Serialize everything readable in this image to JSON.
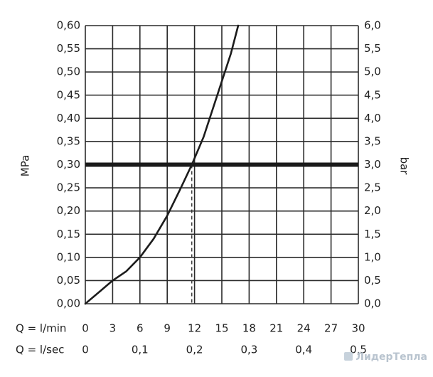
{
  "chart_data": {
    "type": "line",
    "title": "",
    "ylabel_left": "MPa",
    "ylabel_right": "bar",
    "x_axes": [
      {
        "prefix": "Q = l/min",
        "ticks": [
          0,
          3,
          6,
          9,
          12,
          15,
          18,
          21,
          24,
          27,
          30
        ],
        "tick_labels": [
          "0",
          "3",
          "6",
          "9",
          "12",
          "15",
          "18",
          "21",
          "24",
          "27",
          "30"
        ]
      },
      {
        "prefix": "Q = l/sec",
        "ticks": [
          0,
          0.1,
          0.2,
          0.3,
          0.4,
          0.5
        ],
        "tick_labels": [
          "0",
          "0,1",
          "0,2",
          "0,3",
          "0,4",
          "0,5"
        ]
      }
    ],
    "y_left_ticks": [
      "0,00",
      "0,05",
      "0,10",
      "0,15",
      "0,20",
      "0,25",
      "0,30",
      "0,35",
      "0,40",
      "0,45",
      "0,50",
      "0,55",
      "0,60"
    ],
    "y_right_ticks": [
      "0,0",
      "0,5",
      "1,0",
      "1,5",
      "2,0",
      "2,5",
      "3,0",
      "3,5",
      "4,0",
      "4,5",
      "5,0",
      "5,5",
      "6,0"
    ],
    "xlim": [
      0,
      30
    ],
    "ylim": [
      0,
      0.6
    ],
    "grid": true,
    "series": [
      {
        "x": [
          0,
          1.5,
          3,
          4.5,
          6,
          7.5,
          9,
          10.5,
          11.7,
          13,
          14.5,
          16,
          16.8
        ],
        "y": [
          0,
          0.025,
          0.05,
          0.07,
          0.1,
          0.14,
          0.19,
          0.25,
          0.3,
          0.36,
          0.45,
          0.54,
          0.6
        ]
      }
    ],
    "reference_line": {
      "y": 0.3
    },
    "marker": {
      "x": 11.7,
      "y": 0.3
    }
  },
  "watermark": "ЛидерТепла"
}
